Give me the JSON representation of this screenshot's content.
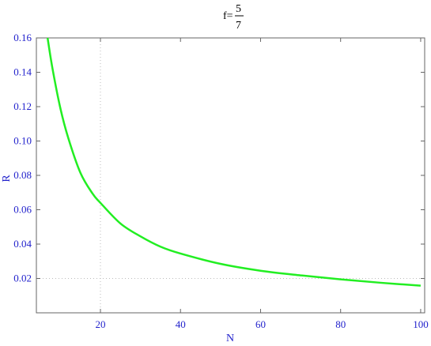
{
  "chart_data": {
    "type": "line",
    "title": {
      "prefix": "f=",
      "numerator": "5",
      "denominator": "7"
    },
    "xlabel": "N",
    "ylabel": "R",
    "xlim": [
      4,
      101
    ],
    "ylim": [
      0,
      0.16
    ],
    "x_ticks": [
      20,
      40,
      60,
      80,
      100
    ],
    "x_tick_labels": [
      "20",
      "40",
      "60",
      "80",
      "100"
    ],
    "y_ticks": [
      0.02,
      0.04,
      0.06,
      0.08,
      0.1,
      0.12,
      0.14,
      0.16
    ],
    "y_tick_labels": [
      "0.02",
      "0.04",
      "0.06",
      "0.08",
      "0.10",
      "0.12",
      "0.14",
      "0.16"
    ],
    "reference_lines": {
      "x": 20,
      "y": 0.02,
      "style": "dotted"
    },
    "series": [
      {
        "color": "#22ee22",
        "x": [
          6.8,
          8,
          10,
          12,
          15,
          18,
          20,
          25,
          30,
          35,
          40,
          50,
          60,
          70,
          80,
          90,
          100
        ],
        "y": [
          0.16,
          0.1425,
          0.119,
          0.1015,
          0.0815,
          0.0695,
          0.064,
          0.052,
          0.0445,
          0.0385,
          0.0345,
          0.0285,
          0.0245,
          0.0218,
          0.0195,
          0.0175,
          0.0158
        ]
      }
    ],
    "colors": {
      "axis": "#2222cc",
      "frame": "#666666",
      "gridline": "#bbbbbb",
      "curve": "#22ee22"
    }
  }
}
